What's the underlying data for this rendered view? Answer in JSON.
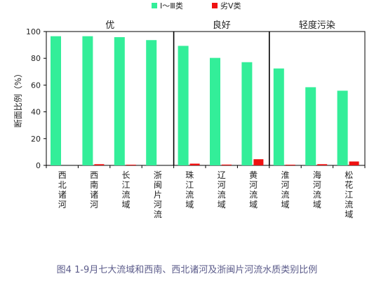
{
  "caption": "图4 1-9月七大流域和西南、西北诸河及浙闽片河流水质类别比例",
  "chart_data": {
    "type": "bar",
    "ylabel": "断面比例（%）",
    "ylim": [
      0,
      100
    ],
    "yticks": [
      0,
      20,
      40,
      60,
      80,
      100
    ],
    "legend": {
      "placement": "top",
      "entries": [
        "Ⅰ～Ⅲ类",
        "劣Ⅴ类"
      ]
    },
    "groups": [
      {
        "label": "优",
        "categories": [
          0,
          1,
          2,
          3
        ]
      },
      {
        "label": "良好",
        "categories": [
          4,
          5,
          6
        ]
      },
      {
        "label": "轻度污染",
        "categories": [
          7,
          8,
          9
        ]
      }
    ],
    "categories": [
      [
        "西",
        "北",
        "诸",
        "河"
      ],
      [
        "西",
        "南",
        "诸",
        "河"
      ],
      [
        "长",
        "江",
        "流",
        "域"
      ],
      [
        "浙",
        "闽",
        "片",
        "河",
        "流"
      ],
      [
        "珠",
        "江",
        "流",
        "域"
      ],
      [
        "辽",
        "河",
        "流",
        "域"
      ],
      [
        "黄",
        "河",
        "流",
        "域"
      ],
      [
        "淮",
        "河",
        "流",
        "域"
      ],
      [
        "海",
        "河",
        "流",
        "域"
      ],
      [
        "松",
        "花",
        "江",
        "流",
        "域"
      ]
    ],
    "series": [
      {
        "name": "Ⅰ～Ⅲ类",
        "color": "#33ee99",
        "values": [
          96.5,
          96.5,
          95.8,
          93.6,
          89.3,
          80.3,
          77.1,
          72.4,
          58.4,
          55.8
        ]
      },
      {
        "name": "劣Ⅴ类",
        "color": "#ee1111",
        "values": [
          0,
          0.9,
          0.3,
          0,
          1.3,
          0.6,
          4.6,
          0.2,
          0.9,
          2.9
        ]
      }
    ],
    "grid": false
  }
}
